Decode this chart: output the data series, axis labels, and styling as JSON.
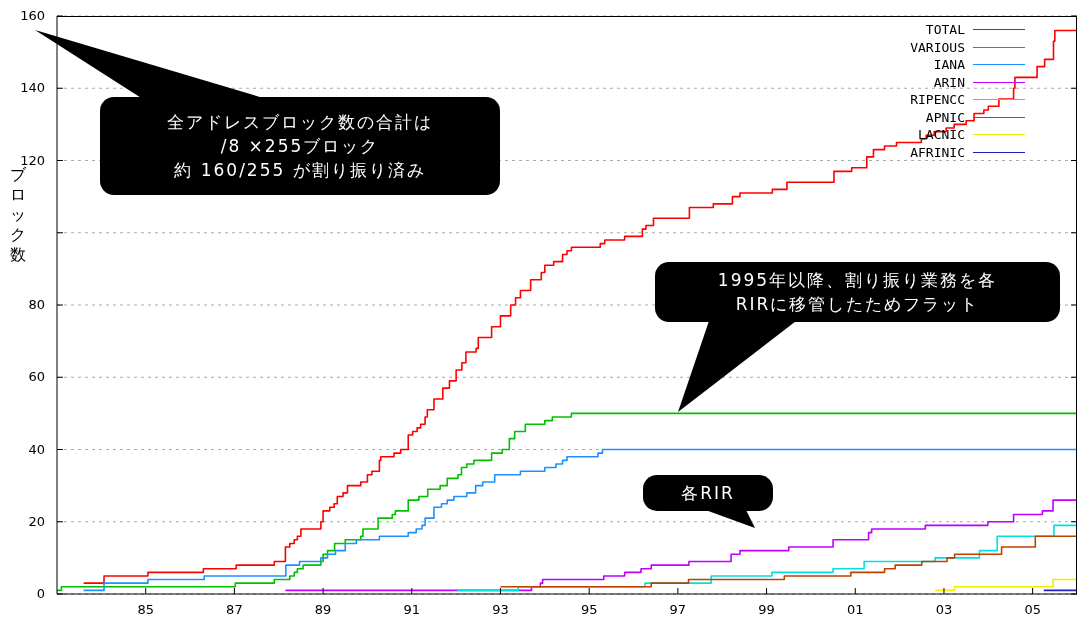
{
  "chart_data": {
    "type": "step",
    "ylabel": "ブロック数",
    "xlim": [
      1983,
      2006
    ],
    "ylim": [
      0,
      160
    ],
    "xticks": [
      {
        "value": 1985,
        "label": "85"
      },
      {
        "value": 1987,
        "label": "87"
      },
      {
        "value": 1989,
        "label": "89"
      },
      {
        "value": 1991,
        "label": "91"
      },
      {
        "value": 1993,
        "label": "93"
      },
      {
        "value": 1995,
        "label": "95"
      },
      {
        "value": 1997,
        "label": "97"
      },
      {
        "value": 1999,
        "label": "99"
      },
      {
        "value": 2001,
        "label": "01"
      },
      {
        "value": 2003,
        "label": "03"
      },
      {
        "value": 2005,
        "label": "05"
      }
    ],
    "yticks": [
      0,
      20,
      40,
      60,
      80,
      {
        "value": 100,
        "label": null
      },
      120,
      140,
      160
    ],
    "grid": "y",
    "legend": "top right",
    "marker": "none",
    "line_style": "solid",
    "annotations": [
      "全アドレスブロック数の合計は",
      "/8 ×255ブロック",
      "約 160/255 が割り振り済み",
      "1995年以降、割り振り業務を各",
      "RIRに移管したためフラット",
      "各RIR"
    ],
    "series": [
      {
        "name": "TOTAL",
        "color": "#ff0000",
        "x": [
          1983.6,
          1984.06,
          1985.05,
          1986.3,
          1987.04,
          1987.9,
          1988.15,
          1988.25,
          1988.35,
          1988.42,
          1988.5,
          1988.95,
          1989.0,
          1989.15,
          1989.25,
          1989.32,
          1989.45,
          1989.55,
          1989.85,
          1990.0,
          1990.1,
          1990.27,
          1990.3,
          1990.6,
          1990.75,
          1990.92,
          1991.02,
          1991.12,
          1991.2,
          1991.3,
          1991.35,
          1991.5,
          1991.7,
          1991.85,
          1992.0,
          1992.13,
          1992.22,
          1992.45,
          1992.5,
          1992.8,
          1993.0,
          1993.23,
          1993.34,
          1993.45,
          1993.68,
          1993.92,
          1994.0,
          1994.2,
          1994.4,
          1994.5,
          1994.6,
          1995.25,
          1995.35,
          1995.8,
          1996.2,
          1996.28,
          1996.45,
          1997.26,
          1997.8,
          1998.23,
          1998.4,
          1999.13,
          1999.46,
          2000.52,
          2000.92,
          2001.26,
          2001.41,
          2001.66,
          2001.93,
          2002.49,
          2002.6,
          2002.78,
          2003.05,
          2003.23,
          2003.5,
          2003.68,
          2003.9,
          2004.0,
          2004.24,
          2004.57,
          2004.6,
          2005.1,
          2005.27,
          2005.47,
          2005.5,
          2006
        ],
        "values": [
          3,
          5,
          6,
          7,
          8,
          9,
          13,
          14,
          15,
          16,
          18,
          20,
          23,
          24,
          25,
          27,
          28,
          30,
          31,
          33,
          34,
          37,
          38,
          39,
          40,
          44,
          45,
          46,
          47,
          49,
          51,
          54,
          57,
          59,
          62,
          64,
          67,
          68,
          71,
          74,
          77,
          80,
          82,
          84,
          87,
          89,
          91,
          92,
          94,
          95,
          96,
          97,
          98,
          99,
          101,
          102,
          104,
          107,
          108,
          110,
          111,
          112,
          114,
          117,
          118,
          121,
          123,
          124,
          125,
          126,
          127,
          128,
          129,
          130,
          131,
          133,
          134,
          135,
          137,
          140,
          143,
          146,
          148,
          153,
          156,
          156
        ]
      },
      {
        "name": "VARIOUS",
        "color": "#00c000",
        "x": [
          1983,
          1983.1,
          1987.02,
          1987.9,
          1988.25,
          1988.35,
          1988.42,
          1988.55,
          1988.95,
          1989.0,
          1989.1,
          1989.26,
          1989.5,
          1989.85,
          1989.9,
          1990.24,
          1990.56,
          1990.63,
          1990.92,
          1991.16,
          1991.36,
          1991.64,
          1991.8,
          1992.04,
          1992.12,
          1992.24,
          1992.4,
          1992.8,
          1993.04,
          1993.2,
          1993.32,
          1993.56,
          1994.0,
          1994.17,
          1994.6,
          2006
        ],
        "values": [
          1,
          2,
          3,
          4,
          5,
          6,
          7,
          8,
          9,
          11,
          12,
          14,
          15,
          16,
          18,
          21,
          22,
          23,
          26,
          27,
          29,
          30,
          32,
          33,
          35,
          36,
          37,
          39,
          40,
          43,
          45,
          47,
          48,
          49,
          50,
          50
        ]
      },
      {
        "name": "IANA",
        "color": "#1e90ff",
        "x": [
          1983.6,
          1984.06,
          1985.05,
          1986.32,
          1988.16,
          1988.47,
          1988.95,
          1989.1,
          1989.28,
          1989.5,
          1989.75,
          1990.27,
          1990.92,
          1991.1,
          1991.23,
          1991.3,
          1991.5,
          1991.67,
          1991.8,
          1991.95,
          1992.24,
          1992.44,
          1992.6,
          1992.87,
          1993.45,
          1994.0,
          1994.25,
          1994.4,
          1994.5,
          1995.2,
          1995.3,
          2006
        ],
        "values": [
          1,
          3,
          4,
          5,
          8,
          9,
          10,
          11,
          12,
          14,
          15,
          16,
          17,
          18,
          19,
          21,
          24,
          25,
          26,
          27,
          28,
          30,
          31,
          33,
          34,
          35,
          36,
          37,
          38,
          39,
          40,
          40
        ]
      },
      {
        "name": "ARIN",
        "color": "#c000ff",
        "x": [
          1988.15,
          1993.7,
          1993.9,
          1993.95,
          1995.33,
          1995.8,
          1996.17,
          1996.4,
          1997.25,
          1998.2,
          1998.4,
          1999.5,
          2000.5,
          2001.3,
          2001.37,
          2002.58,
          2003.99,
          2004.57,
          2005.22,
          2005.46,
          2006
        ],
        "values": [
          1,
          2,
          3,
          4,
          5,
          6,
          7,
          8,
          9,
          11,
          12,
          13,
          15,
          17,
          18,
          19,
          20,
          22,
          23,
          26,
          26
        ]
      },
      {
        "name": "RIPENCC",
        "color": "#00e0e0",
        "x": [
          1992.02,
          1993.4,
          1996.26,
          1997.75,
          1999.12,
          2000.5,
          2001.2,
          2002.8,
          2003.8,
          2004.2,
          2005.48,
          2006
        ],
        "values": [
          1,
          2,
          3,
          5,
          6,
          7,
          9,
          10,
          12,
          16,
          19,
          19
        ]
      },
      {
        "name": "APNIC",
        "color": "#c04000",
        "x": [
          1993.0,
          1996.4,
          1997.24,
          1999.4,
          2000.9,
          2001.66,
          2001.9,
          2002.5,
          2003.07,
          2003.24,
          2004.3,
          2005.06,
          2006
        ],
        "values": [
          2,
          3,
          4,
          5,
          6,
          7,
          8,
          9,
          10,
          11,
          13,
          16,
          16
        ]
      },
      {
        "name": "LACNIC",
        "color": "#eeee00",
        "x": [
          2002.8,
          2003.24,
          2005.46,
          2006
        ],
        "values": [
          1,
          2,
          4,
          4
        ]
      },
      {
        "name": "AFRINIC",
        "color": "#2020c0",
        "x": [
          2005.25,
          2006
        ],
        "values": [
          1,
          1
        ]
      }
    ]
  }
}
